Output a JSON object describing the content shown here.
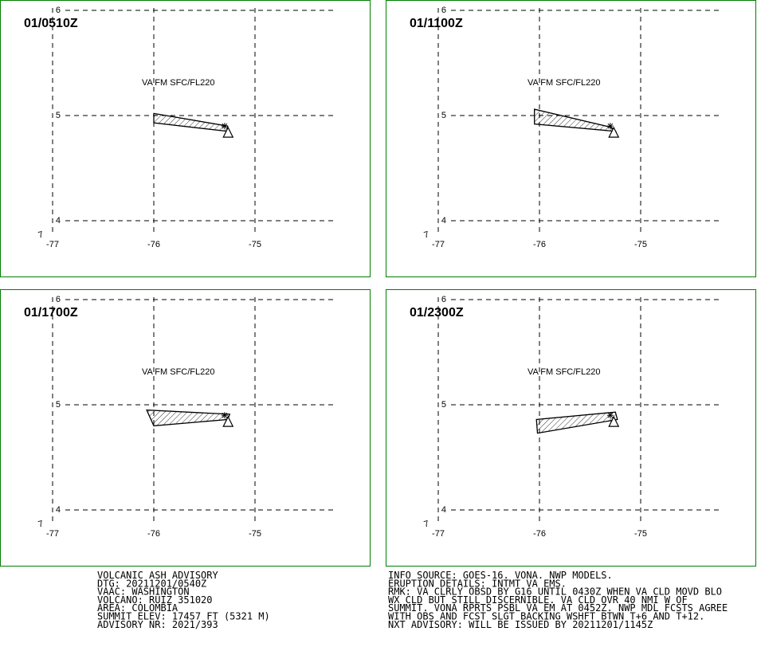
{
  "panels": [
    {
      "time": "01/0510Z",
      "label": "VA FM SFC/FL220",
      "polygon": [
        [
          -76.0,
          5.02
        ],
        [
          -76.0,
          4.93
        ],
        [
          -75.27,
          4.85
        ],
        [
          -75.27,
          4.9
        ]
      ],
      "vent": [
        -75.3,
        4.9
      ],
      "arrow": [
        -75.25,
        4.84
      ]
    },
    {
      "time": "01/1100Z",
      "label": "VA FM SFC/FL220",
      "polygon": [
        [
          -76.05,
          5.06
        ],
        [
          -76.05,
          4.92
        ],
        [
          -75.25,
          4.85
        ],
        [
          -75.3,
          4.89
        ]
      ],
      "vent": [
        -75.3,
        4.9
      ],
      "arrow": [
        -75.25,
        4.84
      ]
    },
    {
      "time": "01/1700Z",
      "label": "VA FM SFC/FL220",
      "polygon": [
        [
          -76.07,
          4.95
        ],
        [
          -76.0,
          4.8
        ],
        [
          -75.27,
          4.86
        ],
        [
          -75.25,
          4.91
        ]
      ],
      "vent": [
        -75.3,
        4.9
      ],
      "arrow": [
        -75.25,
        4.84
      ]
    },
    {
      "time": "01/2300Z",
      "label": "VA FM SFC/FL220",
      "polygon": [
        [
          -76.03,
          4.86
        ],
        [
          -76.02,
          4.73
        ],
        [
          -75.23,
          4.86
        ],
        [
          -75.25,
          4.93
        ]
      ],
      "vent": [
        -75.3,
        4.9
      ],
      "arrow": [
        -75.25,
        4.84
      ]
    }
  ],
  "axes": {
    "lon_ticks": [
      "-77",
      "-76",
      "-75"
    ],
    "lat_ticks": [
      "6",
      "5",
      "4"
    ],
    "corner_lat": "7"
  },
  "advisory_left": [
    "VOLCANIC ASH ADVISORY",
    "DTG: 20211201/0540Z",
    "VAAC: WASHINGTON",
    "VOLCANO: RUIZ 351020",
    "AREA: COLOMBIA",
    "SUMMIT ELEV: 17457 FT (5321 M)",
    "ADVISORY NR: 2021/393"
  ],
  "advisory_right": [
    "INFO SOURCE: GOES-16. VONA. NWP MODELS.",
    "ERUPTION DETAILS: INTMT VA EMS.",
    "RMK: VA CLRLY OBSD BY G16 UNTIL 0430Z WHEN VA CLD MOVD BLO",
    "WX CLD BUT STILL DISCERNIBLE. VA CLD OVR 40 NMI W OF",
    "SUMMIT. VONA RPRTS PSBL VA EM AT 0452Z. NWP MDL FCSTS AGREE",
    "WITH OBS AND FCST SLGT BACKING WSHFT BTWN T+6 AND T+12.",
    "NXT ADVISORY: WILL BE ISSUED BY 20211201/1145Z"
  ],
  "colors": {
    "frame": "#008000",
    "ink": "#000000"
  }
}
